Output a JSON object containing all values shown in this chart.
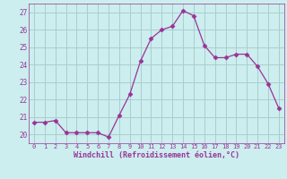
{
  "x": [
    0,
    1,
    2,
    3,
    4,
    5,
    6,
    7,
    8,
    9,
    10,
    11,
    12,
    13,
    14,
    15,
    16,
    17,
    18,
    19,
    20,
    21,
    22,
    23
  ],
  "y": [
    20.7,
    20.7,
    20.8,
    20.1,
    20.1,
    20.1,
    20.1,
    19.85,
    21.1,
    22.3,
    24.2,
    25.5,
    26.0,
    26.2,
    27.1,
    26.8,
    25.1,
    24.4,
    24.4,
    24.6,
    24.6,
    23.9,
    22.9,
    21.5
  ],
  "line_color": "#993399",
  "marker": "D",
  "marker_size": 2.5,
  "bg_color": "#cceeee",
  "grid_color": "#aacccc",
  "xlabel": "Windchill (Refroidissement éolien,°C)",
  "xlabel_color": "#993399",
  "tick_color": "#993399",
  "ylim": [
    19.5,
    27.5
  ],
  "xlim": [
    -0.5,
    23.5
  ],
  "yticks": [
    20,
    21,
    22,
    23,
    24,
    25,
    26,
    27
  ],
  "xticks": [
    0,
    1,
    2,
    3,
    4,
    5,
    6,
    7,
    8,
    9,
    10,
    11,
    12,
    13,
    14,
    15,
    16,
    17,
    18,
    19,
    20,
    21,
    22,
    23
  ]
}
